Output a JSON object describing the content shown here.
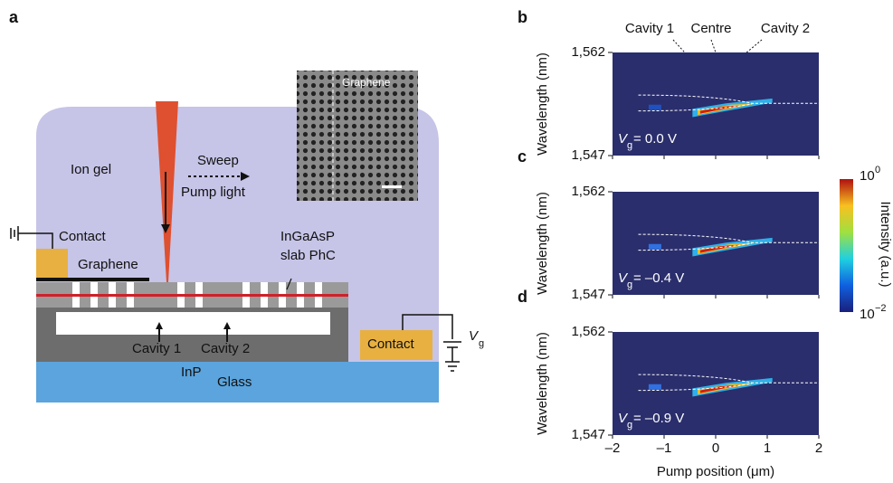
{
  "figure": {
    "panel_a": {
      "label": "a",
      "inset_label": "Graphene",
      "ion_gel": "Ion gel",
      "sweep": "Sweep",
      "pump": "Pump light",
      "contact_left": "Contact",
      "graphene": "Graphene",
      "slab": [
        "InGaAsP",
        "slab PhC"
      ],
      "cavity1": "Cavity 1",
      "cavity2": "Cavity 2",
      "inp": "InP",
      "contact_right": "Contact",
      "gate": {
        "symbol": "V",
        "subscript": "g"
      },
      "glass": "Glass"
    },
    "heatmaps": {
      "top_labels": [
        "Cavity 1",
        "Centre",
        "Cavity 2"
      ],
      "xlim": [
        -2,
        2
      ],
      "xticks": [
        {
          "value": -2,
          "label": "–2"
        },
        {
          "value": -1,
          "label": "–1"
        },
        0,
        1,
        2
      ],
      "xlabel": "Pump position (μm)",
      "ylim": [
        1547,
        1562
      ],
      "yticks": [
        {
          "value": 1562,
          "label": "1,562"
        },
        {
          "value": 1547,
          "label": "1,547"
        }
      ],
      "ylabel": "Wavelength (nm)",
      "panels": [
        {
          "label": "b",
          "annotation": {
            "symbol": "V",
            "subscript": "g",
            "text": " = 0.0 V"
          }
        },
        {
          "label": "c",
          "annotation": {
            "symbol": "V",
            "subscript": "g",
            "text": " = –0.4 V"
          }
        },
        {
          "label": "d",
          "annotation": {
            "symbol": "V",
            "subscript": "g",
            "text": " = –0.9 V"
          }
        }
      ]
    },
    "colorbar": {
      "ticks": [
        {
          "base": "10",
          "exponent": "0"
        },
        {
          "base": "10",
          "exponent": "−2"
        }
      ],
      "label": "Intensity (a.u.)"
    }
  }
}
